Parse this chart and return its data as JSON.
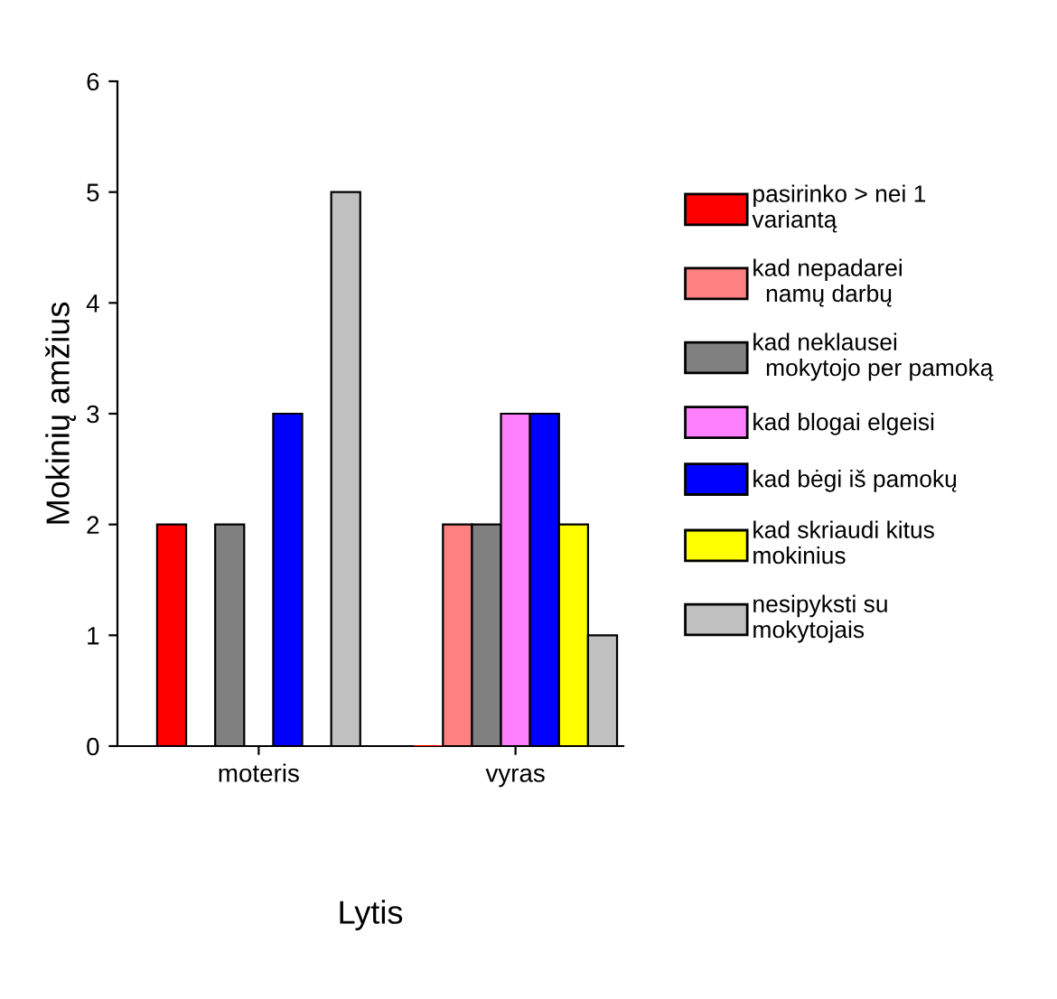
{
  "chart_data": {
    "type": "bar",
    "xlabel": "Lytis",
    "ylabel": "Mokinių amžius",
    "categories": [
      "moteris",
      "vyras"
    ],
    "series": [
      {
        "name": "pasirinko > nei 1\nvariantą",
        "color": "#ff0000",
        "values": [
          2,
          0
        ]
      },
      {
        "name": "kad nepadarei\n  namų darbų",
        "color": "#ff8080",
        "values": [
          null,
          2
        ]
      },
      {
        "name": "kad neklausei\n  mokytojo per pamoką",
        "color": "#808080",
        "values": [
          2,
          2
        ]
      },
      {
        "name": "kad blogai elgeisi",
        "color": "#ff80ff",
        "values": [
          null,
          3
        ]
      },
      {
        "name": "kad bėgi iš pamokų",
        "color": "#0000ff",
        "values": [
          3,
          3
        ]
      },
      {
        "name": "kad skriaudi kitus\nmokinius",
        "color": "#ffff00",
        "values": [
          null,
          2
        ]
      },
      {
        "name": "nesipyksti su\nmokytojais",
        "color": "#c0c0c0",
        "values": [
          5,
          1
        ]
      }
    ],
    "ylim": [
      0,
      6
    ],
    "yticks": [
      0,
      1,
      2,
      3,
      4,
      5,
      6
    ],
    "grid": false,
    "legend": "right"
  }
}
